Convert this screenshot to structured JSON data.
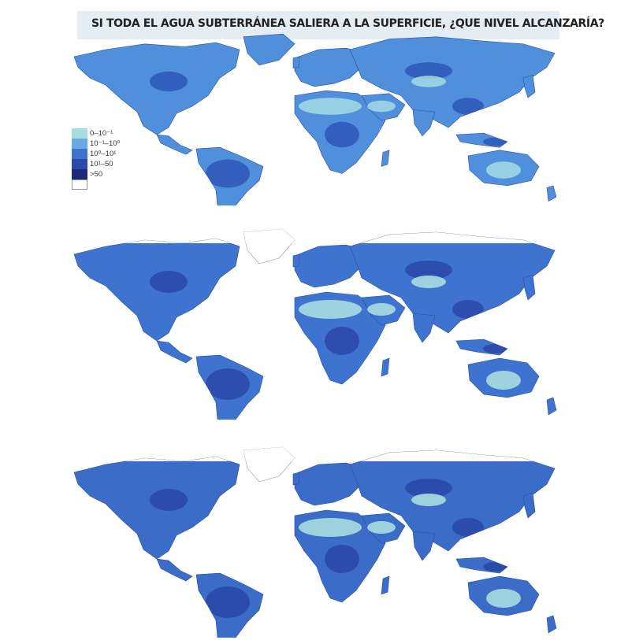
{
  "title": "SI TODA EL AGUA SUBTERRÁNEA SALIERA A LA SUPERFICIE, ¿QUE NIVEL ALCANZARÍA?",
  "legend": [
    {
      "label": "0–10⁻¹",
      "color": "#a8dde0"
    },
    {
      "label": "10⁻¹–10⁰",
      "color": "#6aa9e6"
    },
    {
      "label": "10⁰–10¹",
      "color": "#3f73d0"
    },
    {
      "label": "10¹–50",
      "color": "#2b49a8"
    },
    {
      "label": ">50",
      "color": "#1c2a78"
    },
    {
      "label": "",
      "color": "#ffffff"
    }
  ],
  "maps": [
    {
      "name": "map-top",
      "base": "#4f8fdc",
      "dark": "#2d56b8",
      "light": "#9ed7e2",
      "pale_north": false
    },
    {
      "name": "map-middle",
      "base": "#3e74d0",
      "dark": "#2a48a8",
      "light": "#a8dde0",
      "pale_north": true
    },
    {
      "name": "map-bottom",
      "base": "#3a6cc8",
      "dark": "#2a46a6",
      "light": "#a8dde0",
      "pale_north": true
    }
  ]
}
